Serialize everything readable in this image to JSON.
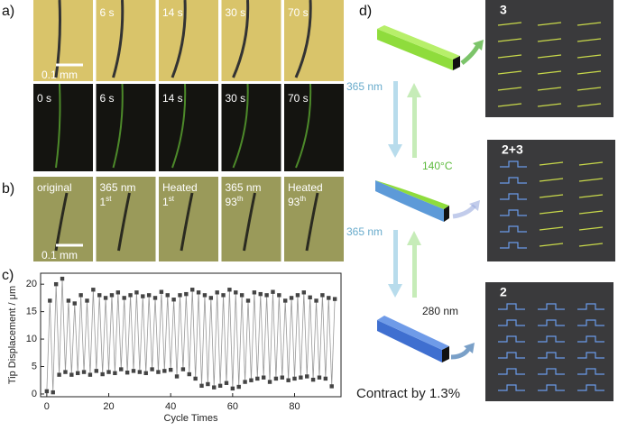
{
  "panels": {
    "a": {
      "label": "a)",
      "scale_bar": "0.1 mm",
      "top_row": [
        "6 s",
        "14 s",
        "30 s",
        "70 s"
      ],
      "bottom_row": [
        "0 s",
        "6 s",
        "14 s",
        "30 s",
        "70 s"
      ]
    },
    "b": {
      "label": "b)",
      "scale_bar": "0.1 mm",
      "frames": [
        {
          "line1": "original"
        },
        {
          "line1": "365 nm",
          "line2": "1",
          "sup": "st"
        },
        {
          "line1": "Heated",
          "line2": "1",
          "sup": "st"
        },
        {
          "line1": "365 nm",
          "line2": "93",
          "sup": "th"
        },
        {
          "line1": "Heated",
          "line2": "93",
          "sup": "th"
        }
      ]
    },
    "c": {
      "label": "c)"
    },
    "d": {
      "label": "d)",
      "steps": [
        "365 nm",
        "140°C",
        "365 nm",
        "280 nm"
      ],
      "caption": "Contract by 1.3%",
      "states": [
        "3",
        "2+3",
        "2"
      ]
    }
  },
  "chart_data": {
    "type": "line",
    "x_label": "Cycle Times",
    "y_label": "Tip Displacement / μm",
    "color": "#444",
    "x": [
      0,
      1,
      2,
      3,
      4,
      5,
      6,
      7,
      8,
      9,
      10,
      11,
      12,
      13,
      14,
      15,
      16,
      17,
      18,
      19,
      20,
      21,
      22,
      23,
      24,
      25,
      26,
      27,
      28,
      29,
      30,
      31,
      32,
      33,
      34,
      35,
      36,
      37,
      38,
      39,
      40,
      41,
      42,
      43,
      44,
      45,
      46,
      47,
      48,
      49,
      50,
      51,
      52,
      53,
      54,
      55,
      56,
      57,
      58,
      59,
      60,
      61,
      62,
      63,
      64,
      65,
      66,
      67,
      68,
      69,
      70,
      71,
      72,
      73,
      74,
      75,
      76,
      77,
      78,
      79,
      80,
      81,
      82,
      83,
      84,
      85,
      86,
      87,
      88,
      89,
      90,
      91,
      92,
      93
    ],
    "values": [
      0.5,
      17,
      0.3,
      20,
      3.5,
      21,
      4,
      17,
      3.5,
      16.5,
      3.8,
      18,
      4,
      17,
      3.5,
      19,
      4.2,
      18,
      3.6,
      17.5,
      4,
      18,
      3.8,
      18.5,
      4.5,
      17.5,
      3.9,
      18,
      4.2,
      18.5,
      4,
      17.8,
      3.8,
      18,
      4.5,
      17.5,
      4,
      18.6,
      4.2,
      18,
      4.4,
      17.2,
      3.2,
      18,
      4.5,
      18.2,
      3.6,
      19,
      2.8,
      18.5,
      1.5,
      18,
      1.8,
      17.5,
      1.2,
      18.5,
      1.5,
      18,
      2,
      19,
      1,
      18.5,
      1.3,
      18,
      2.2,
      17,
      2.5,
      18.5,
      2.8,
      18.2,
      3,
      18,
      2.2,
      18.6,
      2.8,
      18,
      3,
      17,
      2.5,
      17.5,
      2.8,
      18,
      3,
      18.5,
      3.2,
      17.6,
      2.6,
      17,
      3,
      18,
      2.8,
      17.5,
      1.4,
      17.3
    ],
    "xlim": [
      -2,
      95
    ],
    "ylim": [
      -0.5,
      22
    ],
    "xticks": [
      0,
      20,
      40,
      60,
      80
    ],
    "yticks": [
      0,
      5,
      10,
      15,
      20
    ]
  }
}
